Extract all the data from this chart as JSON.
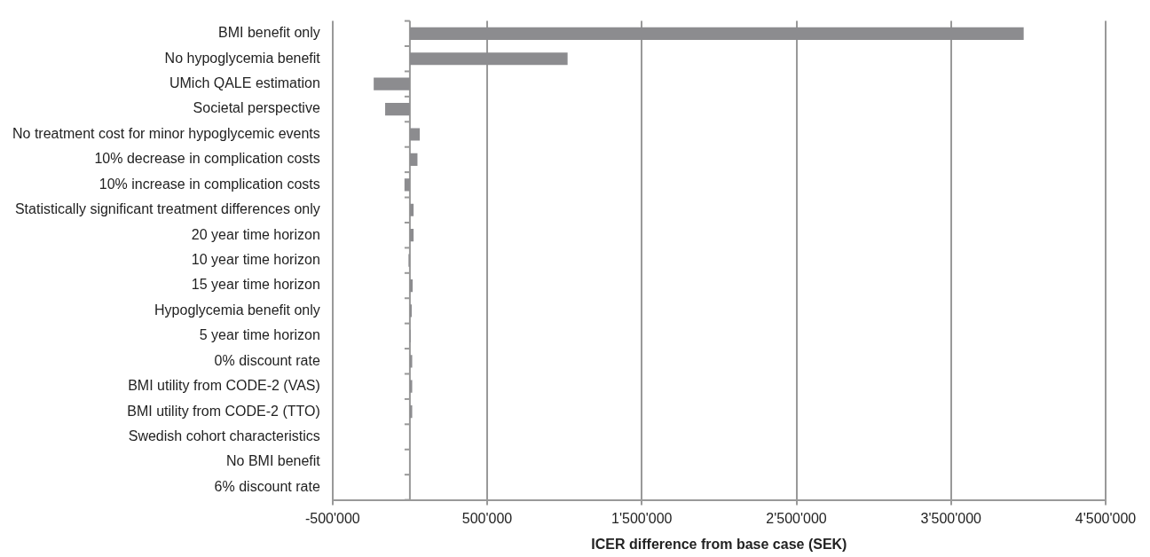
{
  "chart_data": {
    "type": "bar",
    "orientation": "horizontal",
    "xlabel": "ICER difference from base case (SEK)",
    "categories": [
      "BMI benefit only",
      "No hypoglycemia benefit",
      "UMich QALE estimation",
      "Societal perspective",
      "No treatment cost for minor hypoglycemic events",
      "10% decrease in complication costs",
      "10% increase in complication costs",
      "Statistically significant treatment differences only",
      "20 year time horizon",
      "10 year time horizon",
      "15 year time horizon",
      "Hypoglycemia benefit only",
      "5 year time horizon",
      "0% discount rate",
      "BMI utility from CODE-2 (VAS)",
      "BMI utility from CODE-2 (TTO)",
      "Swedish cohort characteristics",
      "No BMI benefit",
      "6% discount rate"
    ],
    "values": [
      3970000,
      1020000,
      -234000,
      -160000,
      64000,
      49000,
      -35000,
      24000,
      24000,
      -9000,
      18000,
      12000,
      5000,
      15000,
      15000,
      15000,
      0,
      0,
      0
    ],
    "color": "#8c8c8f",
    "xlim": [
      -500000,
      4500000
    ],
    "xticks": [
      {
        "value": -500000,
        "label": "-500'000"
      },
      {
        "value": 500000,
        "label": "500'000"
      },
      {
        "value": 1500000,
        "label": "1'500'000"
      },
      {
        "value": 2500000,
        "label": "2'500'000"
      },
      {
        "value": 3500000,
        "label": "3'500'000"
      },
      {
        "value": 4500000,
        "label": "4'500'000"
      }
    ],
    "grid": "x",
    "legend": false
  }
}
